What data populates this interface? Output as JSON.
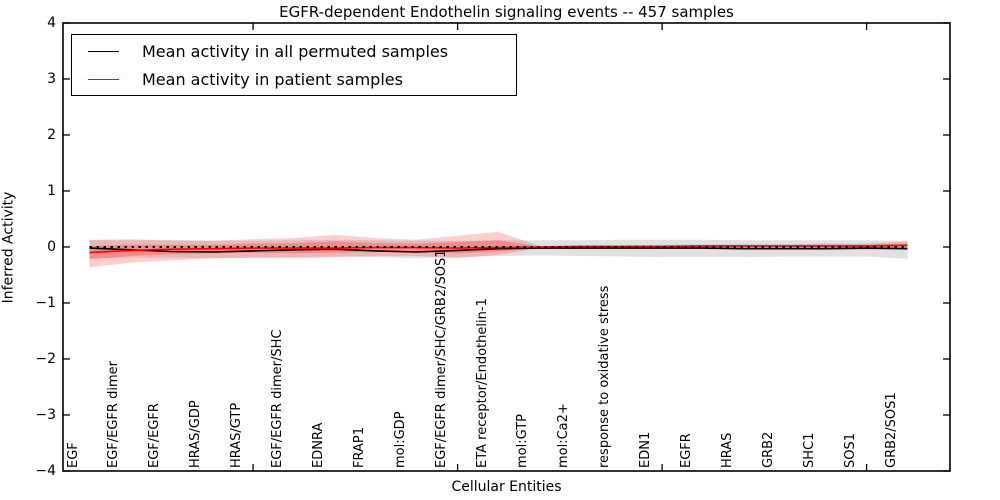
{
  "title": "EGFR-dependent Endothelin signaling events -- 457 samples",
  "accent_colors": {
    "patient": "#ff0000",
    "permuted": "#000000",
    "permuted_band": "rgba(120,120,120,0.22)",
    "patient_band": "rgba(255,60,60,0.25)"
  },
  "chart_data": {
    "type": "line",
    "title": "EGFR-dependent Endothelin signaling events -- 457 samples",
    "xlabel": "Cellular Entities",
    "ylabel": "Inferred Activity",
    "ylim": [
      -4,
      4
    ],
    "yticks": [
      4,
      3,
      2,
      1,
      0,
      -1,
      -2,
      -3,
      -4
    ],
    "xtick_indices": [
      4,
      9,
      14,
      19
    ],
    "grid": false,
    "legend_position": "upper left",
    "categories": [
      "EGF",
      "EGF/EGFR dimer",
      "EGF/EGFR",
      "HRAS/GDP",
      "HRAS/GTP",
      "EGF/EGFR dimer/SHC",
      "EDNRA",
      "FRAP1",
      "mol:GDP",
      "EGF/EGFR dimer/SHC/GRB2/SOS1",
      "ETA receptor/Endothelin-1",
      "mol:GTP",
      "mol:Ca2+",
      "response to oxidative stress",
      "EDN1",
      "EGFR",
      "HRAS",
      "GRB2",
      "SHC1",
      "SOS1",
      "GRB2/SOS1"
    ],
    "series": [
      {
        "name": "Mean activity in all permuted samples",
        "color": "#000000",
        "values": [
          -0.02,
          -0.05,
          -0.08,
          -0.09,
          -0.07,
          -0.05,
          -0.04,
          -0.07,
          -0.09,
          -0.06,
          -0.03,
          -0.02,
          -0.02,
          -0.02,
          -0.02,
          -0.02,
          -0.03,
          -0.03,
          -0.03,
          -0.02,
          -0.03
        ]
      },
      {
        "name": "Mean activity in patient samples",
        "color": "#ff0000",
        "values": [
          -0.1,
          -0.06,
          -0.04,
          -0.03,
          -0.02,
          -0.02,
          -0.02,
          -0.01,
          -0.01,
          -0.02,
          -0.01,
          0.0,
          0.01,
          0.01,
          0.01,
          0.02,
          0.02,
          0.02,
          0.02,
          0.02,
          0.03
        ]
      }
    ],
    "bands": [
      {
        "name": "permuted-std-band",
        "color": "rgba(120,120,120,0.22)",
        "upper": [
          0.12,
          0.12,
          0.12,
          0.11,
          0.11,
          0.12,
          0.13,
          0.12,
          0.11,
          0.11,
          0.12,
          0.12,
          0.12,
          0.13,
          0.13,
          0.13,
          0.12,
          0.12,
          0.12,
          0.12,
          0.11
        ],
        "lower": [
          -0.2,
          -0.19,
          -0.19,
          -0.2,
          -0.19,
          -0.18,
          -0.17,
          -0.18,
          -0.2,
          -0.18,
          -0.16,
          -0.15,
          -0.16,
          -0.17,
          -0.18,
          -0.18,
          -0.18,
          -0.17,
          -0.17,
          -0.17,
          -0.21
        ]
      },
      {
        "name": "patient-std-band-outer",
        "color": "rgba(255,60,60,0.25)",
        "upper": [
          0.13,
          0.14,
          0.12,
          0.11,
          0.14,
          0.16,
          0.22,
          0.16,
          0.13,
          0.2,
          0.27,
          0.02,
          0.03,
          0.03,
          0.04,
          0.04,
          0.05,
          0.05,
          0.06,
          0.06,
          0.1
        ],
        "lower": [
          -0.36,
          -0.28,
          -0.24,
          -0.2,
          -0.19,
          -0.2,
          -0.18,
          -0.16,
          -0.16,
          -0.2,
          -0.14,
          -0.02,
          -0.02,
          -0.02,
          -0.03,
          -0.03,
          -0.04,
          -0.04,
          -0.05,
          -0.05,
          -0.04
        ]
      },
      {
        "name": "patient-std-band-inner",
        "color": "rgba(255,60,60,0.35)",
        "upper": [
          0.02,
          0.04,
          0.04,
          0.04,
          0.06,
          0.07,
          0.1,
          0.07,
          0.06,
          0.09,
          0.12,
          0.01,
          0.02,
          0.02,
          0.02,
          0.03,
          0.03,
          0.03,
          0.04,
          0.04,
          0.06
        ],
        "lower": [
          -0.22,
          -0.16,
          -0.13,
          -0.11,
          -0.1,
          -0.11,
          -0.1,
          -0.09,
          -0.09,
          -0.11,
          -0.08,
          -0.01,
          -0.01,
          -0.01,
          -0.02,
          -0.02,
          -0.03,
          -0.03,
          -0.03,
          -0.03,
          -0.02
        ]
      }
    ],
    "reference_line": {
      "y": 0,
      "style": "dotted",
      "color": "#000000"
    }
  }
}
